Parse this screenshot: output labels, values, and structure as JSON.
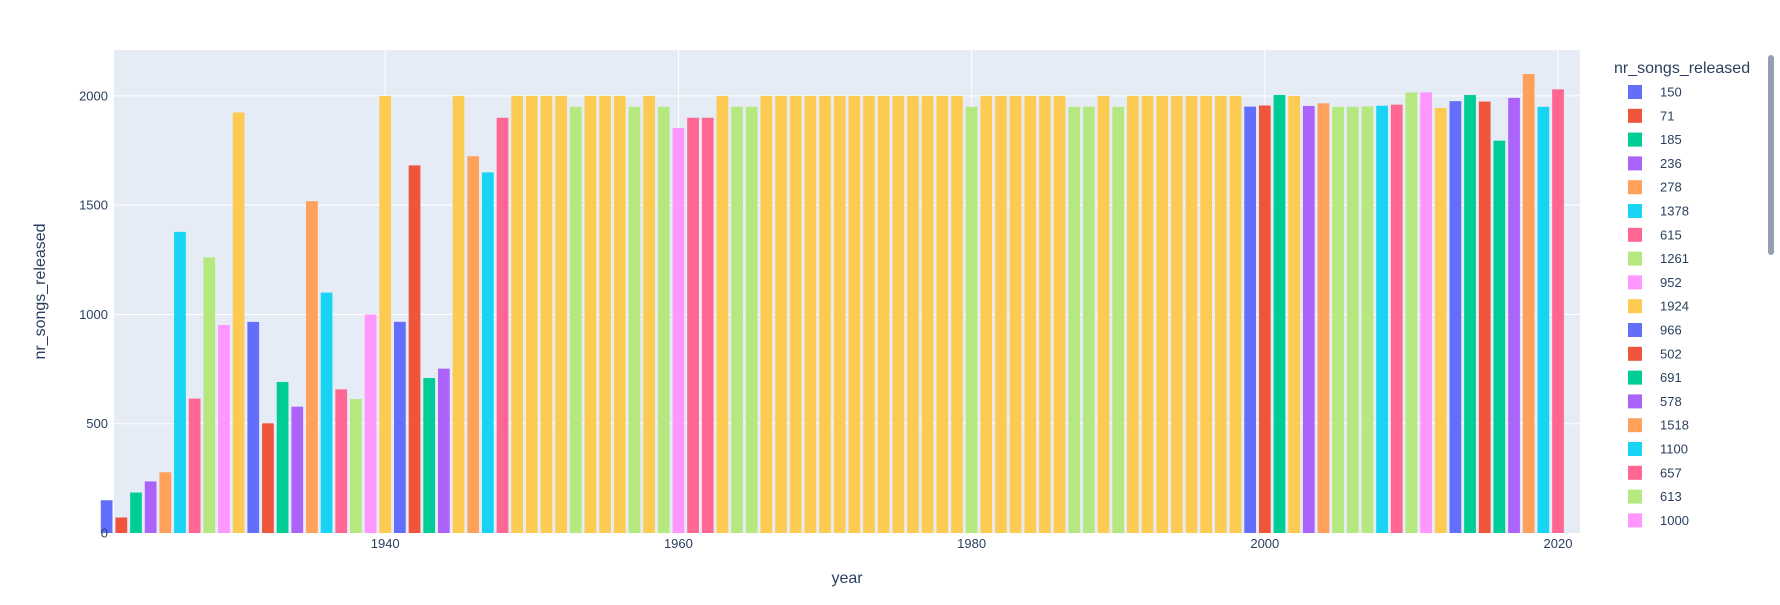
{
  "chart_data": {
    "type": "bar",
    "title": "",
    "xlabel": "year",
    "ylabel": "nr_songs_released",
    "xlim": [
      1921.5,
      2021.5
    ],
    "ylim": [
      0,
      2210
    ],
    "x_ticks": [
      1940,
      1960,
      1980,
      2000,
      2020
    ],
    "y_ticks": [
      0,
      500,
      1000,
      1500,
      2000
    ],
    "grid": true,
    "legend": {
      "title": "nr_songs_released",
      "placement": "right",
      "entries": [
        "150",
        "71",
        "185",
        "236",
        "278",
        "1378",
        "615",
        "1261",
        "952",
        "1924",
        "966",
        "502",
        "691",
        "578",
        "1518",
        "1100",
        "657",
        "613",
        "1000"
      ],
      "scrollable": true
    },
    "palette": [
      "#636efa",
      "#EF553B",
      "#00cc96",
      "#ab63fa",
      "#FFA15A",
      "#19d3f3",
      "#FF6692",
      "#B6E880",
      "#FF97FF",
      "#FECB52"
    ],
    "plot_background": "#E5ECF6",
    "x": [
      1921,
      1922,
      1923,
      1924,
      1925,
      1926,
      1927,
      1928,
      1929,
      1930,
      1931,
      1932,
      1933,
      1934,
      1935,
      1936,
      1937,
      1938,
      1939,
      1940,
      1941,
      1942,
      1943,
      1944,
      1945,
      1946,
      1947,
      1948,
      1949,
      1950,
      1951,
      1952,
      1953,
      1954,
      1955,
      1956,
      1957,
      1958,
      1959,
      1960,
      1961,
      1962,
      1963,
      1964,
      1965,
      1966,
      1967,
      1968,
      1969,
      1970,
      1971,
      1972,
      1973,
      1974,
      1975,
      1976,
      1977,
      1978,
      1979,
      1980,
      1981,
      1982,
      1983,
      1984,
      1985,
      1986,
      1987,
      1988,
      1989,
      1990,
      1991,
      1992,
      1993,
      1994,
      1995,
      1996,
      1997,
      1998,
      1999,
      2000,
      2001,
      2002,
      2003,
      2004,
      2005,
      2006,
      2007,
      2008,
      2009,
      2010,
      2011,
      2012,
      2013,
      2014,
      2015,
      2016,
      2017,
      2018,
      2019,
      2020
    ],
    "values": [
      150,
      71,
      185,
      236,
      278,
      1378,
      615,
      1261,
      952,
      1924,
      966,
      502,
      691,
      578,
      1518,
      1100,
      657,
      613,
      1000,
      2000,
      966,
      1682,
      709,
      752,
      2000,
      1724,
      1650,
      1900,
      2000,
      2000,
      2000,
      2000,
      1950,
      2000,
      2000,
      2000,
      1950,
      2000,
      1950,
      1853,
      1900,
      1900,
      2000,
      1950,
      1950,
      2000,
      2000,
      2000,
      2000,
      2000,
      2000,
      2000,
      2000,
      2000,
      2000,
      2000,
      2000,
      2000,
      2000,
      1950,
      2000,
      2000,
      2000,
      2000,
      2000,
      2000,
      1950,
      1950,
      2000,
      1950,
      2000,
      2000,
      2000,
      2000,
      2000,
      2000,
      2000,
      2000,
      1951,
      1956,
      2004,
      2000,
      1954,
      1966,
      1950,
      1950,
      1952,
      1955,
      1960,
      2016,
      2016,
      1945,
      1976,
      2004,
      1974,
      1795,
      1991,
      2100,
      1950,
      2030
    ],
    "colors": [
      "#636efa",
      "#EF553B",
      "#00cc96",
      "#ab63fa",
      "#FFA15A",
      "#19d3f3",
      "#FF6692",
      "#B6E880",
      "#FF97FF",
      "#FECB52",
      "#636efa",
      "#EF553B",
      "#00cc96",
      "#ab63fa",
      "#FFA15A",
      "#19d3f3",
      "#FF6692",
      "#B6E880",
      "#FF97FF",
      "#FECB52",
      "#636efa",
      "#EF553B",
      "#00cc96",
      "#ab63fa",
      "#FECB52",
      "#FFA15A",
      "#19d3f3",
      "#FF6692",
      "#FECB52",
      "#FECB52",
      "#FECB52",
      "#FECB52",
      "#B6E880",
      "#FECB52",
      "#FECB52",
      "#FECB52",
      "#B6E880",
      "#FECB52",
      "#B6E880",
      "#FF97FF",
      "#FF6692",
      "#FF6692",
      "#FECB52",
      "#B6E880",
      "#B6E880",
      "#FECB52",
      "#FECB52",
      "#FECB52",
      "#FECB52",
      "#FECB52",
      "#FECB52",
      "#FECB52",
      "#FECB52",
      "#FECB52",
      "#FECB52",
      "#FECB52",
      "#FECB52",
      "#FECB52",
      "#FECB52",
      "#B6E880",
      "#FECB52",
      "#FECB52",
      "#FECB52",
      "#FECB52",
      "#FECB52",
      "#FECB52",
      "#B6E880",
      "#B6E880",
      "#FECB52",
      "#B6E880",
      "#FECB52",
      "#FECB52",
      "#FECB52",
      "#FECB52",
      "#FECB52",
      "#FECB52",
      "#FECB52",
      "#FECB52",
      "#636efa",
      "#EF553B",
      "#00cc96",
      "#FECB52",
      "#ab63fa",
      "#FFA15A",
      "#B6E880",
      "#B6E880",
      "#B6E880",
      "#19d3f3",
      "#FF6692",
      "#B6E880",
      "#FF97FF",
      "#FECB52",
      "#636efa",
      "#00cc96",
      "#EF553B",
      "#00cc96",
      "#ab63fa",
      "#FFA15A",
      "#19d3f3",
      "#FF6692"
    ]
  }
}
